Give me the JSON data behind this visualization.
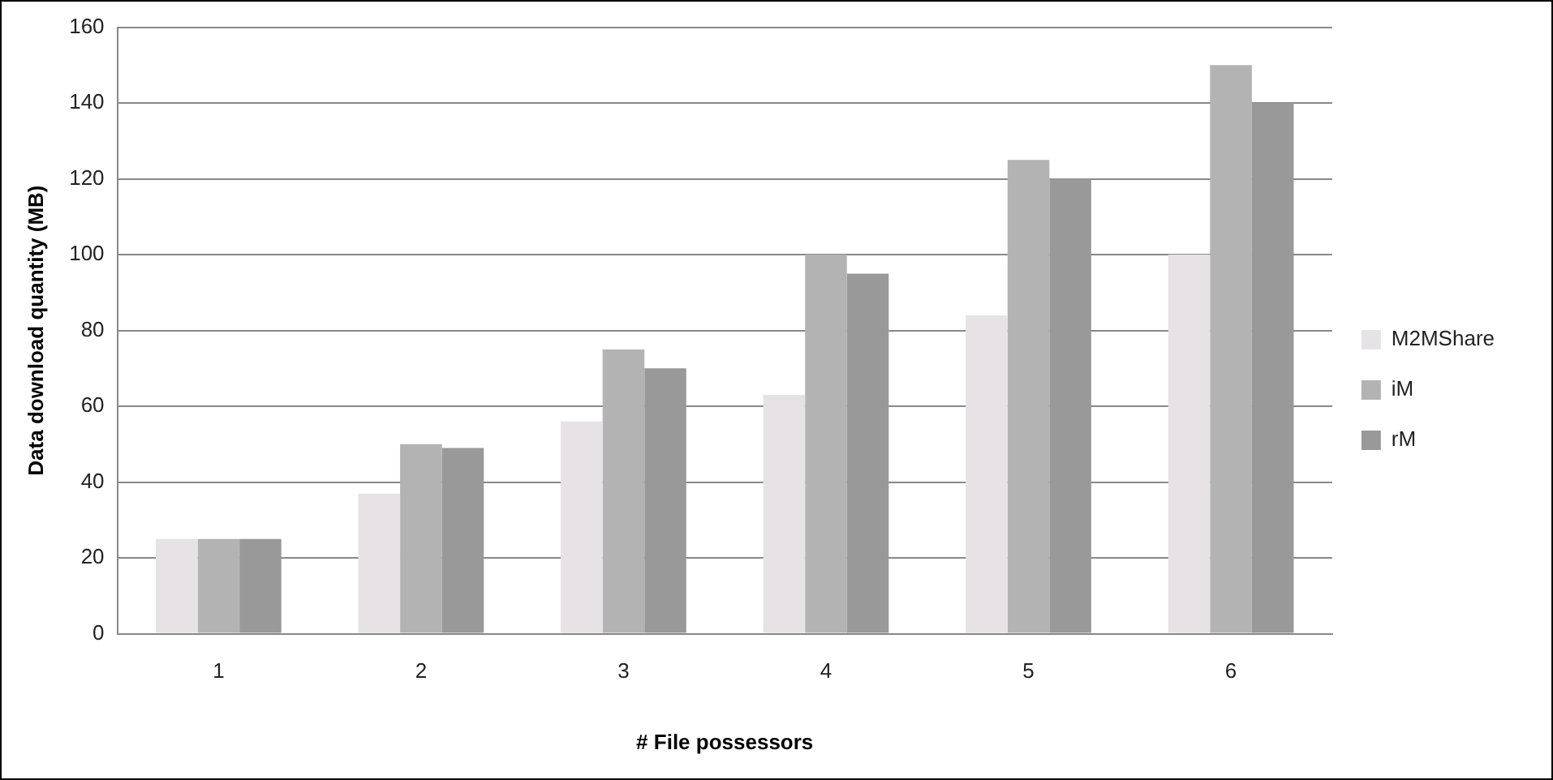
{
  "chart_data": {
    "type": "bar",
    "xlabel": "# File possessors",
    "ylabel": "Data download quantity (MB)",
    "categories": [
      "1",
      "2",
      "3",
      "4",
      "5",
      "6"
    ],
    "series": [
      {
        "name": "M2MShare",
        "color": "#e6e2e6",
        "values": [
          25,
          37,
          56,
          63,
          84,
          100
        ]
      },
      {
        "name": "iM",
        "color": "#b3b3b3",
        "values": [
          25,
          50,
          75,
          100,
          125,
          150
        ]
      },
      {
        "name": "rM",
        "color": "#999999",
        "values": [
          25,
          49,
          70,
          95,
          120,
          140
        ]
      }
    ],
    "ylim": [
      0,
      160
    ],
    "yticks": [
      0,
      20,
      40,
      60,
      80,
      100,
      120,
      140,
      160
    ],
    "grid": "y",
    "legend": "right"
  }
}
